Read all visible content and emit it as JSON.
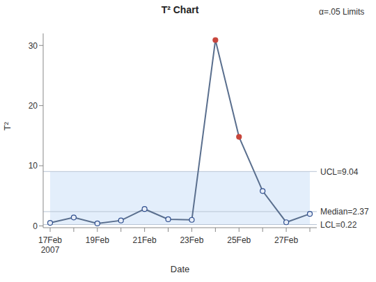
{
  "chart_data": {
    "type": "line",
    "title": "T² Chart",
    "x_label": "Date",
    "y_label": "T²",
    "annotation": "α=.05 Limits",
    "categories": [
      "17Feb 2007",
      null,
      "19Feb",
      null,
      "21Feb",
      null,
      "23Feb",
      null,
      "25Feb",
      null,
      "27Feb",
      null
    ],
    "series": [
      {
        "name": "T²",
        "color": "#5a6f8e",
        "marker": "circle",
        "line_style": "solid",
        "values": [
          0.5,
          1.4,
          0.4,
          0.9,
          2.8,
          1.1,
          1.0,
          30.9,
          14.8,
          5.8,
          0.6,
          2.0
        ],
        "colors": [
          "#2f4f8f",
          "#2f4f8f",
          "#2f4f8f",
          "#2f4f8f",
          "#2f4f8f",
          "#2f4f8f",
          "#2f4f8f",
          "#c8453b",
          "#c8453b",
          "#2f4f8f",
          "#2f4f8f",
          "#2f4f8f"
        ]
      }
    ],
    "limits": {
      "ucl": {
        "value": 9.04,
        "label": "UCL=9.04"
      },
      "median": {
        "value": 2.37,
        "label": "Median=2.37"
      },
      "lcl": {
        "value": 0.22,
        "label": "LCL=0.22"
      }
    },
    "ylim": [
      -0.3,
      32
    ],
    "yticks": [
      0,
      10,
      20,
      30
    ],
    "grid": false
  }
}
